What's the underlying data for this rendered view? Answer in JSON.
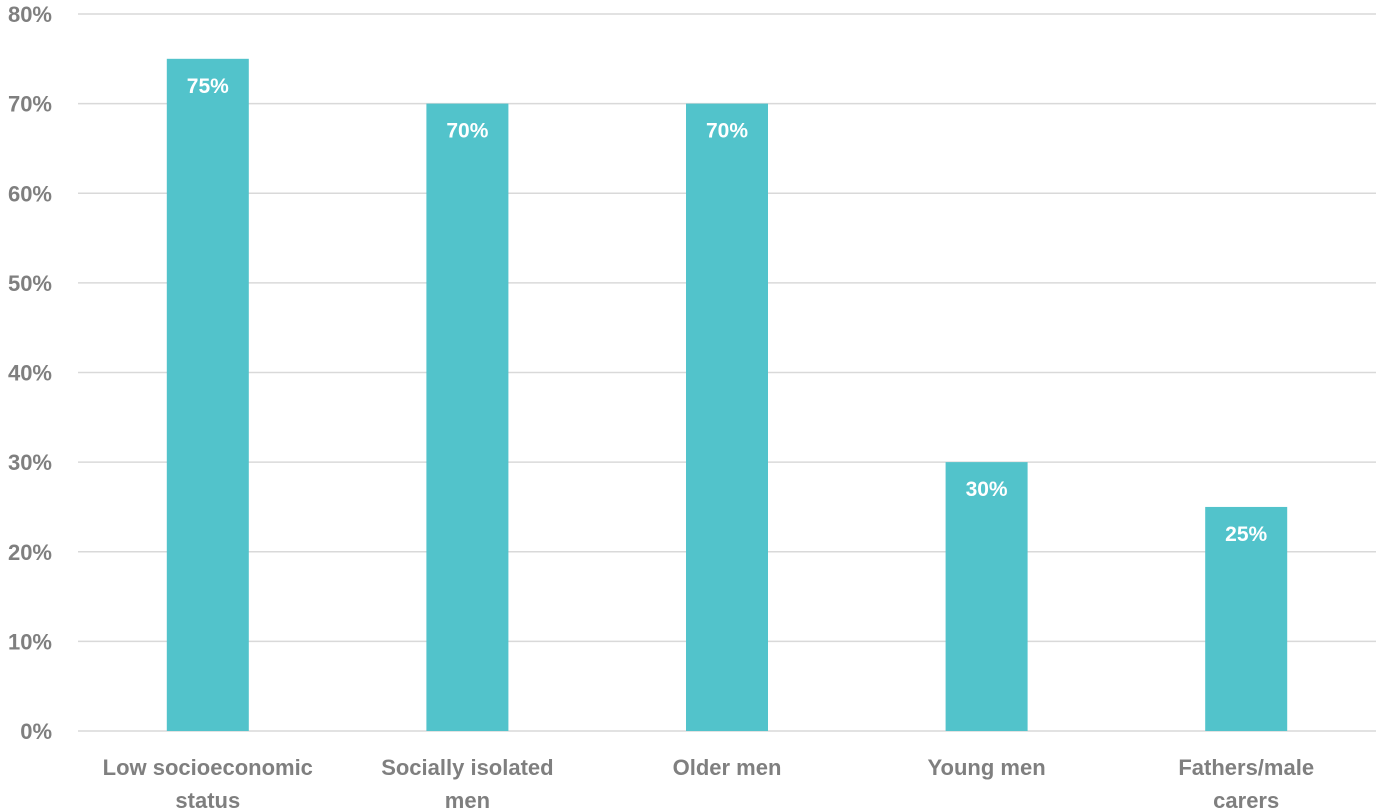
{
  "chart_data": {
    "type": "bar",
    "title": "",
    "xlabel": "",
    "ylabel": "",
    "categories": [
      "Low socioeconomic status",
      "Socially isolated men",
      "Older men",
      "Young men",
      "Fathers/male carers"
    ],
    "values": [
      75,
      70,
      70,
      30,
      25
    ],
    "data_labels": [
      "75%",
      "70%",
      "70%",
      "30%",
      "25%"
    ],
    "ylim": [
      0,
      80
    ],
    "yticks": [
      0,
      10,
      20,
      30,
      40,
      50,
      60,
      70,
      80
    ],
    "ytick_labels": [
      "0%",
      "10%",
      "20%",
      "30%",
      "40%",
      "50%",
      "60%",
      "70%",
      "80%"
    ],
    "grid": true,
    "legend": "none",
    "bar_color": "#52c3cb",
    "grid_color": "#d9d9d9",
    "tick_label_color": "#7f7f7f",
    "data_label_color": "#ffffff"
  }
}
